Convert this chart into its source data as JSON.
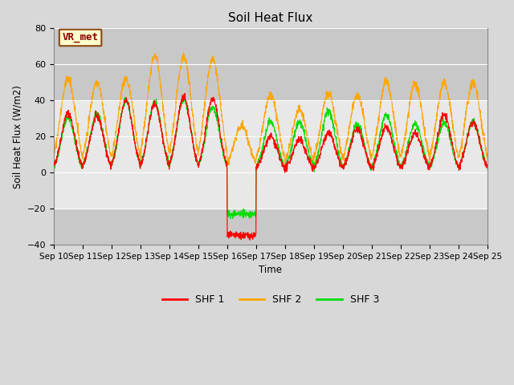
{
  "title": "Soil Heat Flux",
  "ylabel": "Soil Heat Flux (W/m2)",
  "xlabel": "Time",
  "annotation": "VR_met",
  "ylim": [
    -40,
    80
  ],
  "yticks": [
    -40,
    -20,
    0,
    20,
    40,
    60,
    80
  ],
  "legend_labels": [
    "SHF 1",
    "SHF 2",
    "SHF 3"
  ],
  "shf1_color": "#ff0000",
  "shf2_color": "#ffa500",
  "shf3_color": "#00dd00",
  "fig_bg_color": "#d8d8d8",
  "plot_bg_color": "#e8e8e8",
  "band1_color": "#d0d0d0",
  "band2_color": "#d0d0d0",
  "x_tick_labels": [
    "Sep 10",
    "Sep 11",
    "Sep 12",
    "Sep 13",
    "Sep 14",
    "Sep 15",
    "Sep 16",
    "Sep 17",
    "Sep 18",
    "Sep 19",
    "Sep 20",
    "Sep 21",
    "Sep 22",
    "Sep 23",
    "Sep 24",
    "Sep 25"
  ],
  "num_days": 15,
  "points_per_day": 144
}
